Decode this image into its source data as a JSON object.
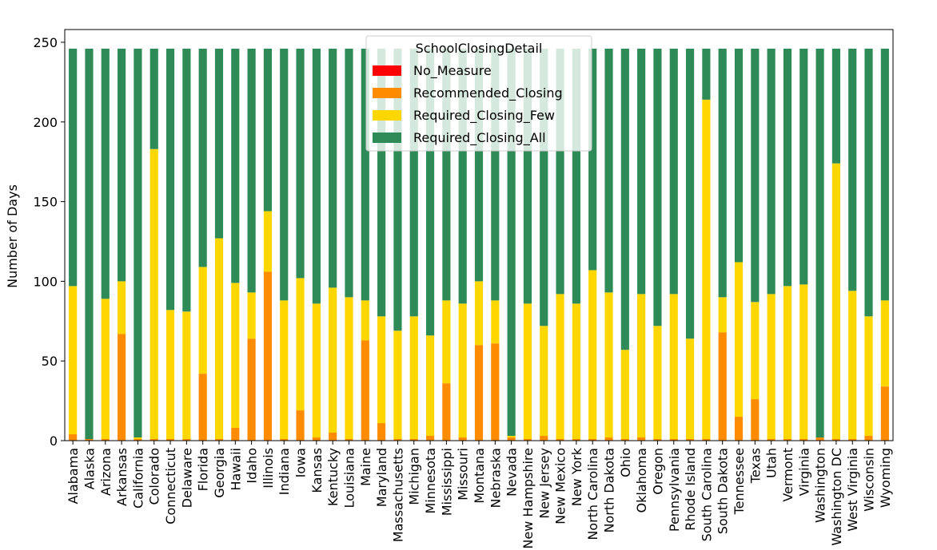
{
  "chart_data": {
    "type": "bar",
    "stacked": true,
    "title": "",
    "xlabel": "",
    "ylabel": "Number of Days",
    "ylim": [
      0,
      250
    ],
    "yticks": [
      0,
      50,
      100,
      150,
      200,
      250
    ],
    "grid": false,
    "legend": {
      "title": "SchoolClosingDetail",
      "placement": "top-center"
    },
    "categories": [
      "Alabama",
      "Alaska",
      "Arizona",
      "Arkansas",
      "California",
      "Colorado",
      "Connecticut",
      "Delaware",
      "Florida",
      "Georgia",
      "Hawaii",
      "Idaho",
      "Illinois",
      "Indiana",
      "Iowa",
      "Kansas",
      "Kentucky",
      "Louisiana",
      "Maine",
      "Maryland",
      "Massachusetts",
      "Michigan",
      "Minnesota",
      "Mississippi",
      "Missouri",
      "Montana",
      "Nebraska",
      "Nevada",
      "New Hampshire",
      "New Jersey",
      "New Mexico",
      "New York",
      "North Carolina",
      "North Dakota",
      "Ohio",
      "Oklahoma",
      "Oregon",
      "Pennsylvania",
      "Rhode Island",
      "South Carolina",
      "South Dakota",
      "Tennessee",
      "Texas",
      "Utah",
      "Vermont",
      "Virginia",
      "Washington",
      "Washington DC",
      "West Virginia",
      "Wisconsin",
      "Wyoming"
    ],
    "series": [
      {
        "name": "No_Measure",
        "color": "#ff0000",
        "values": [
          0,
          0,
          0,
          0,
          0,
          0,
          0,
          0,
          0,
          0,
          0,
          0,
          0,
          0,
          0,
          0,
          0,
          0,
          0,
          0,
          0,
          0,
          0,
          0,
          0,
          0,
          0,
          0,
          0,
          0,
          0,
          0,
          0,
          0,
          0,
          0,
          0,
          0,
          0,
          0,
          0,
          0,
          0,
          0,
          0,
          0,
          0,
          0,
          0,
          0,
          0
        ]
      },
      {
        "name": "Recommended_Closing",
        "color": "#ff8c00",
        "values": [
          4,
          1,
          1,
          67,
          1,
          1,
          1,
          1,
          42,
          1,
          8,
          64,
          106,
          1,
          19,
          2,
          5,
          1,
          63,
          11,
          1,
          1,
          3,
          36,
          2,
          60,
          61,
          2,
          1,
          3,
          1,
          1,
          1,
          2,
          1,
          2,
          1,
          1,
          1,
          1,
          68,
          15,
          26,
          1,
          1,
          1,
          2,
          1,
          1,
          3,
          34
        ]
      },
      {
        "name": "Required_Closing_Few",
        "color": "#ffd700",
        "values": [
          93,
          0,
          88,
          33,
          1,
          182,
          81,
          80,
          67,
          126,
          91,
          29,
          38,
          87,
          83,
          84,
          91,
          89,
          25,
          67,
          68,
          77,
          63,
          52,
          84,
          40,
          27,
          1,
          85,
          69,
          91,
          85,
          106,
          91,
          56,
          90,
          71,
          91,
          63,
          213,
          22,
          97,
          61,
          91,
          96,
          97,
          0,
          173,
          93,
          75,
          54
        ]
      },
      {
        "name": "Required_Closing_All",
        "color": "#2e8b57",
        "values": [
          149,
          245,
          157,
          146,
          244,
          63,
          164,
          165,
          137,
          119,
          147,
          153,
          102,
          158,
          144,
          160,
          150,
          156,
          158,
          168,
          177,
          168,
          180,
          158,
          160,
          146,
          158,
          243,
          160,
          174,
          154,
          160,
          139,
          153,
          189,
          154,
          174,
          154,
          182,
          32,
          156,
          134,
          159,
          154,
          149,
          148,
          244,
          72,
          152,
          168,
          158
        ]
      }
    ]
  }
}
